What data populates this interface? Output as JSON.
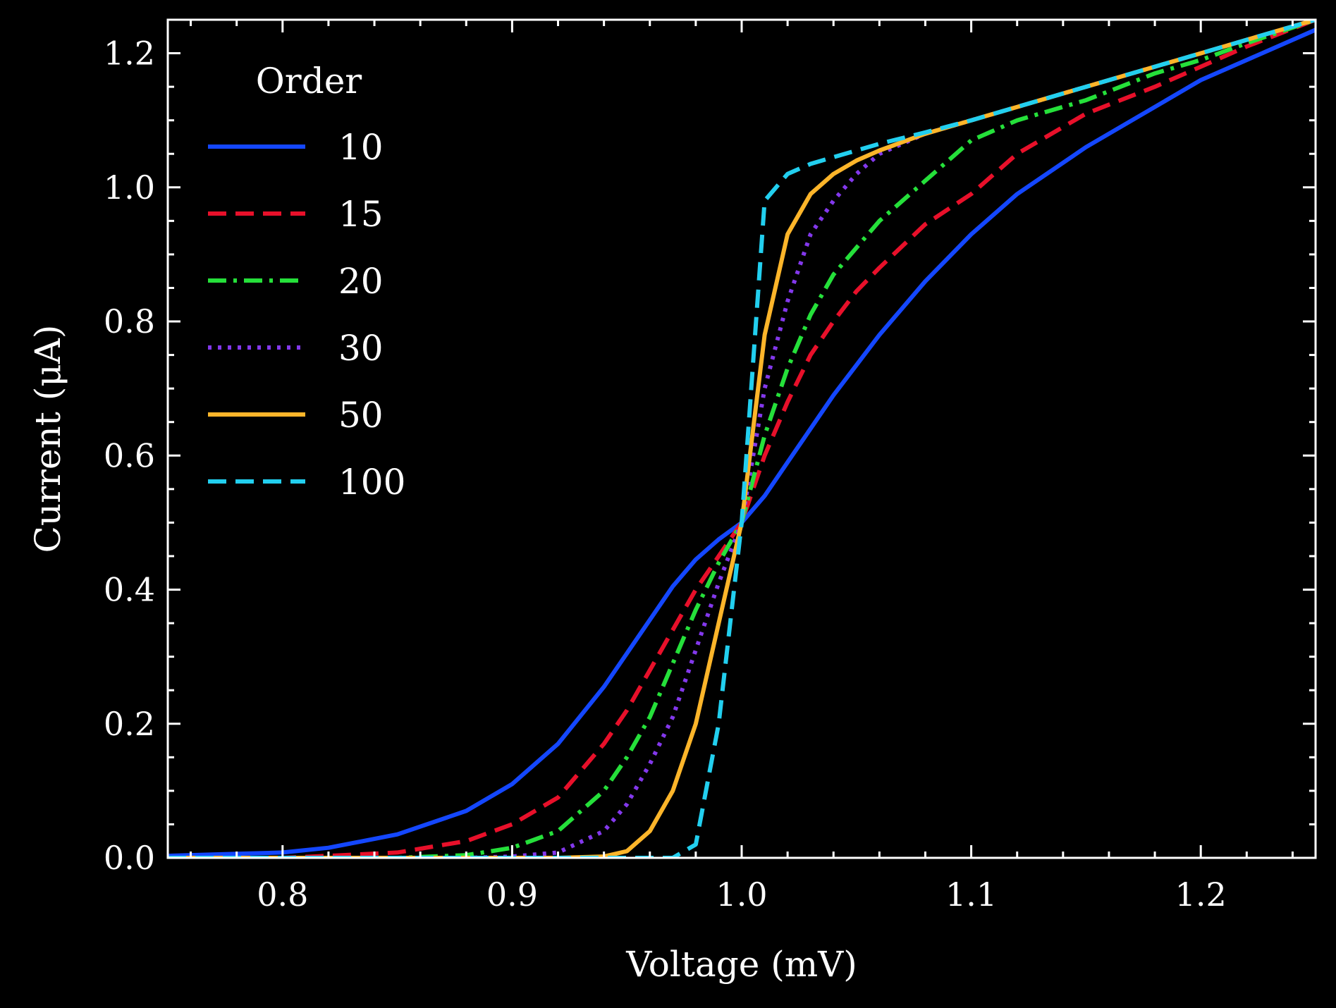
{
  "chart_data": {
    "type": "line",
    "xlabel": "Voltage (mV)",
    "ylabel": "Current (μA)",
    "xlim": [
      0.75,
      1.25
    ],
    "ylim": [
      0.0,
      1.25
    ],
    "xticks": [
      "0.8",
      "0.9",
      "1.0",
      "1.1",
      "1.2"
    ],
    "yticks": [
      "0.0",
      "0.2",
      "0.4",
      "0.6",
      "0.8",
      "1.0",
      "1.2"
    ],
    "legend_title": "Order",
    "legend_position": "top-left",
    "grid": false,
    "background": "#000000",
    "x": [
      0.75,
      0.78,
      0.8,
      0.82,
      0.85,
      0.88,
      0.9,
      0.92,
      0.94,
      0.95,
      0.96,
      0.97,
      0.98,
      0.99,
      1.0,
      1.01,
      1.02,
      1.03,
      1.04,
      1.05,
      1.06,
      1.08,
      1.1,
      1.12,
      1.15,
      1.18,
      1.2,
      1.22,
      1.25
    ],
    "series": [
      {
        "name": "10",
        "color": "#1447ff",
        "dash": "solid",
        "values": [
          0.003,
          0.006,
          0.008,
          0.015,
          0.035,
          0.07,
          0.11,
          0.17,
          0.255,
          0.305,
          0.355,
          0.405,
          0.445,
          0.475,
          0.5,
          0.54,
          0.59,
          0.64,
          0.69,
          0.735,
          0.78,
          0.86,
          0.93,
          0.99,
          1.06,
          1.12,
          1.16,
          1.19,
          1.235
        ]
      },
      {
        "name": "15",
        "color": "#e8102a",
        "dash": "dashed",
        "values": [
          0.0,
          0.0,
          0.0,
          0.003,
          0.008,
          0.025,
          0.05,
          0.09,
          0.17,
          0.22,
          0.28,
          0.34,
          0.4,
          0.45,
          0.5,
          0.6,
          0.68,
          0.75,
          0.8,
          0.845,
          0.88,
          0.945,
          0.99,
          1.05,
          1.11,
          1.15,
          1.18,
          1.21,
          1.25
        ]
      },
      {
        "name": "20",
        "color": "#25e03a",
        "dash": "dashdot",
        "values": [
          0.0,
          0.0,
          0.0,
          0.0,
          0.0,
          0.004,
          0.015,
          0.04,
          0.1,
          0.15,
          0.21,
          0.29,
          0.37,
          0.44,
          0.5,
          0.63,
          0.73,
          0.81,
          0.87,
          0.91,
          0.95,
          1.01,
          1.07,
          1.1,
          1.13,
          1.17,
          1.19,
          1.215,
          1.25
        ]
      },
      {
        "name": "30",
        "color": "#8338ec",
        "dash": "dotted",
        "values": [
          0.0,
          0.0,
          0.0,
          0.0,
          0.0,
          0.0,
          0.002,
          0.008,
          0.04,
          0.08,
          0.14,
          0.21,
          0.31,
          0.41,
          0.5,
          0.7,
          0.83,
          0.93,
          0.98,
          1.02,
          1.05,
          1.08,
          1.1,
          1.12,
          1.15,
          1.18,
          1.2,
          1.22,
          1.25
        ]
      },
      {
        "name": "50",
        "color": "#fdb52a",
        "dash": "solid",
        "values": [
          0.0,
          0.0,
          0.0,
          0.0,
          0.0,
          0.0,
          0.0,
          0.0,
          0.002,
          0.01,
          0.04,
          0.1,
          0.2,
          0.35,
          0.5,
          0.78,
          0.93,
          0.99,
          1.02,
          1.04,
          1.055,
          1.08,
          1.1,
          1.12,
          1.15,
          1.18,
          1.2,
          1.22,
          1.25
        ]
      },
      {
        "name": "100",
        "color": "#22cfef",
        "dash": "dashed",
        "values": [
          0.0,
          0.0,
          0.0,
          0.0,
          0.0,
          0.0,
          0.0,
          0.0,
          0.0,
          0.0,
          0.0,
          0.0,
          0.02,
          0.2,
          0.5,
          0.98,
          1.02,
          1.035,
          1.045,
          1.055,
          1.065,
          1.082,
          1.1,
          1.12,
          1.15,
          1.18,
          1.2,
          1.22,
          1.25
        ]
      }
    ]
  }
}
